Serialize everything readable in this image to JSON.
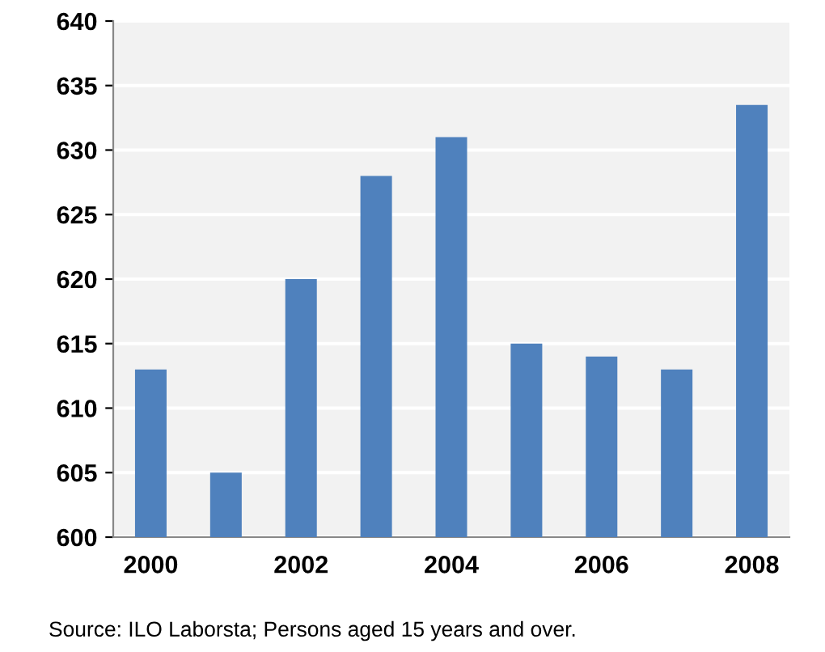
{
  "chart_data": {
    "type": "bar",
    "categories": [
      "2000",
      null,
      "2002",
      null,
      "2004",
      null,
      "2006",
      null,
      "2008"
    ],
    "values": [
      613,
      605,
      620,
      628,
      631,
      615,
      614,
      613,
      633.5
    ],
    "color": "#4f81bd",
    "ylim": [
      600,
      640
    ],
    "yticks": [
      600,
      605,
      610,
      615,
      620,
      625,
      630,
      635,
      640
    ],
    "grid": "y",
    "legend": false,
    "annotations": [
      "Source: ILO Laborsta; Persons aged 15 years and over."
    ]
  }
}
